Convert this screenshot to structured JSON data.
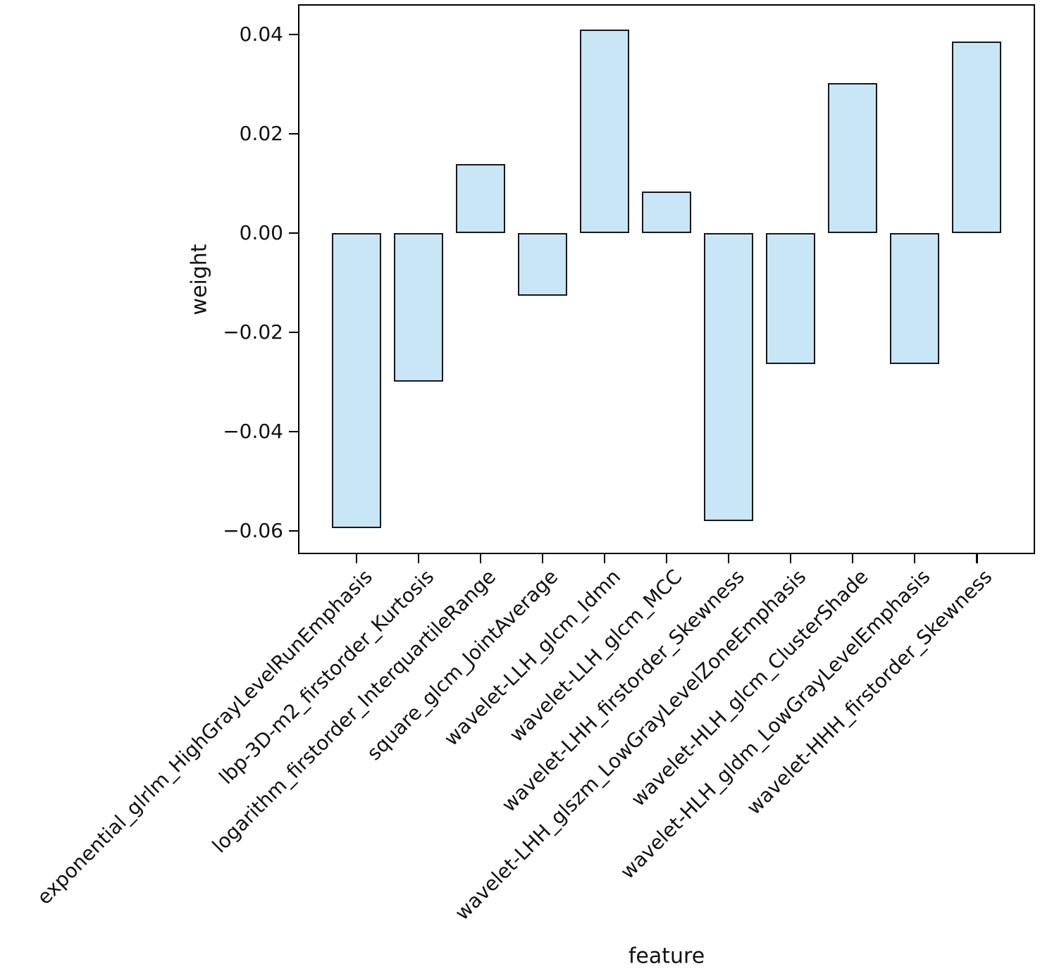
{
  "chart_data": {
    "type": "bar",
    "title": "",
    "xlabel": "feature",
    "ylabel": "weight",
    "categories": [
      "exponential_glrlm_HighGrayLevelRunEmphasis",
      "lbp-3D-m2_firstorder_Kurtosis",
      "logarithm_firstorder_InterquartileRange",
      "square_glcm_JointAverage",
      "wavelet-LLH_glcm_Idmn",
      "wavelet-LLH_glcm_MCC",
      "wavelet-LHH_firstorder_Skewness",
      "wavelet-LHH_glszm_LowGrayLevelZoneEmphasis",
      "wavelet-HLH_glcm_ClusterShade",
      "wavelet-HLH_gldm_LowGrayLevelEmphasis",
      "wavelet-HHH_firstorder_Skewness"
    ],
    "values": [
      -0.0594,
      -0.0299,
      0.0139,
      -0.0126,
      0.041,
      0.0084,
      -0.058,
      -0.0264,
      0.0302,
      -0.0264,
      0.0386
    ],
    "yticks": [
      {
        "value": 0.04,
        "label": "0.04"
      },
      {
        "value": 0.02,
        "label": "0.02"
      },
      {
        "value": 0.0,
        "label": "0.00"
      },
      {
        "value": -0.02,
        "label": "−0.02"
      },
      {
        "value": -0.04,
        "label": "−0.04"
      },
      {
        "value": -0.06,
        "label": "−0.06"
      }
    ],
    "ylim": [
      -0.0647,
      0.0461
    ],
    "grid": false,
    "legend": null,
    "bar_fill_color": "#c8e6f5",
    "bar_edge_color": "#17171b",
    "axis_color": "#000000"
  }
}
